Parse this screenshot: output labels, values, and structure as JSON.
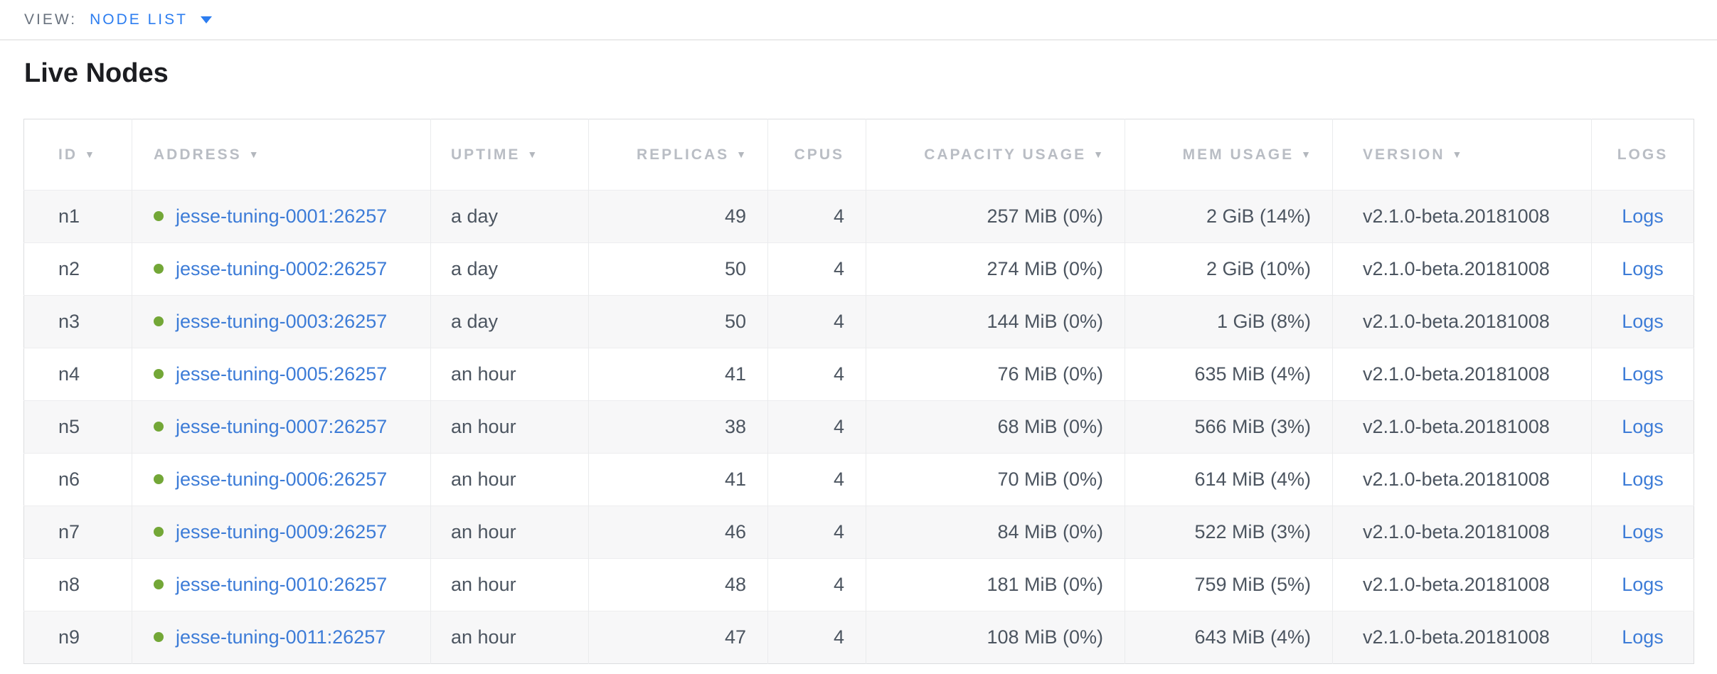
{
  "view_bar": {
    "label": "VIEW:",
    "selected": "NODE LIST"
  },
  "page": {
    "title": "Live Nodes"
  },
  "table": {
    "columns": [
      {
        "key": "id",
        "label": "ID",
        "sortable": true,
        "align": "left"
      },
      {
        "key": "address",
        "label": "ADDRESS",
        "sortable": true,
        "align": "left"
      },
      {
        "key": "uptime",
        "label": "UPTIME",
        "sortable": true,
        "align": "left"
      },
      {
        "key": "replicas",
        "label": "REPLICAS",
        "sortable": true,
        "align": "right"
      },
      {
        "key": "cpus",
        "label": "CPUS",
        "sortable": false,
        "align": "right"
      },
      {
        "key": "capacity_usage",
        "label": "CAPACITY USAGE",
        "sortable": true,
        "align": "right"
      },
      {
        "key": "mem_usage",
        "label": "MEM USAGE",
        "sortable": true,
        "align": "right"
      },
      {
        "key": "version",
        "label": "VERSION",
        "sortable": true,
        "align": "left"
      },
      {
        "key": "logs",
        "label": "LOGS",
        "sortable": false,
        "align": "center"
      }
    ],
    "rows": [
      {
        "id": "n1",
        "address": "jesse-tuning-0001:26257",
        "uptime": "a day",
        "replicas": "49",
        "cpus": "4",
        "capacity_usage": "257 MiB (0%)",
        "mem_usage": "2 GiB (14%)",
        "version": "v2.1.0-beta.20181008",
        "logs": "Logs"
      },
      {
        "id": "n2",
        "address": "jesse-tuning-0002:26257",
        "uptime": "a day",
        "replicas": "50",
        "cpus": "4",
        "capacity_usage": "274 MiB (0%)",
        "mem_usage": "2 GiB (10%)",
        "version": "v2.1.0-beta.20181008",
        "logs": "Logs"
      },
      {
        "id": "n3",
        "address": "jesse-tuning-0003:26257",
        "uptime": "a day",
        "replicas": "50",
        "cpus": "4",
        "capacity_usage": "144 MiB (0%)",
        "mem_usage": "1 GiB (8%)",
        "version": "v2.1.0-beta.20181008",
        "logs": "Logs"
      },
      {
        "id": "n4",
        "address": "jesse-tuning-0005:26257",
        "uptime": "an hour",
        "replicas": "41",
        "cpus": "4",
        "capacity_usage": "76 MiB (0%)",
        "mem_usage": "635 MiB (4%)",
        "version": "v2.1.0-beta.20181008",
        "logs": "Logs"
      },
      {
        "id": "n5",
        "address": "jesse-tuning-0007:26257",
        "uptime": "an hour",
        "replicas": "38",
        "cpus": "4",
        "capacity_usage": "68 MiB (0%)",
        "mem_usage": "566 MiB (3%)",
        "version": "v2.1.0-beta.20181008",
        "logs": "Logs"
      },
      {
        "id": "n6",
        "address": "jesse-tuning-0006:26257",
        "uptime": "an hour",
        "replicas": "41",
        "cpus": "4",
        "capacity_usage": "70 MiB (0%)",
        "mem_usage": "614 MiB (4%)",
        "version": "v2.1.0-beta.20181008",
        "logs": "Logs"
      },
      {
        "id": "n7",
        "address": "jesse-tuning-0009:26257",
        "uptime": "an hour",
        "replicas": "46",
        "cpus": "4",
        "capacity_usage": "84 MiB (0%)",
        "mem_usage": "522 MiB (3%)",
        "version": "v2.1.0-beta.20181008",
        "logs": "Logs"
      },
      {
        "id": "n8",
        "address": "jesse-tuning-0010:26257",
        "uptime": "an hour",
        "replicas": "48",
        "cpus": "4",
        "capacity_usage": "181 MiB (0%)",
        "mem_usage": "759 MiB (5%)",
        "version": "v2.1.0-beta.20181008",
        "logs": "Logs"
      },
      {
        "id": "n9",
        "address": "jesse-tuning-0011:26257",
        "uptime": "an hour",
        "replicas": "47",
        "cpus": "4",
        "capacity_usage": "108 MiB (0%)",
        "mem_usage": "643 MiB (4%)",
        "version": "v2.1.0-beta.20181008",
        "logs": "Logs"
      }
    ]
  },
  "icons": {
    "sort_indicator": "triangle-down",
    "view_caret": "triangle-down",
    "node_status": "green-dot"
  },
  "colors": {
    "link_blue": "#3d7cd7",
    "view_selected_blue": "#2c7df0",
    "node_live_green": "#73a737",
    "header_label_gray": "#b9bdc4",
    "cell_text": "#4c5560"
  }
}
